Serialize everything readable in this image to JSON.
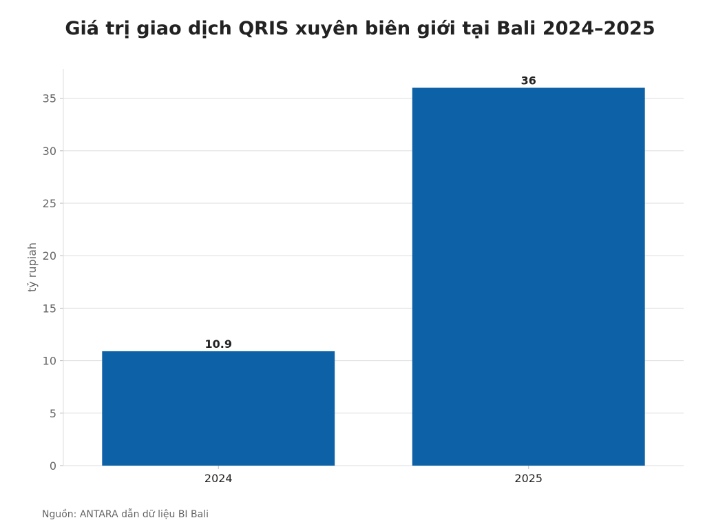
{
  "title": "Giá trị giao dịch QRIS xuyên biên giới tại Bali 2024–2025",
  "source": "Nguồn: ANTARA dẫn dữ liệu BI Bali",
  "chart_data": {
    "type": "bar",
    "title": "Giá trị giao dịch QRIS xuyên biên giới tại Bali 2024–2025",
    "categories": [
      "2024",
      "2025"
    ],
    "values": [
      10.9,
      36
    ],
    "data_labels": [
      "10.9",
      "36"
    ],
    "xlabel": "",
    "ylabel": "tỷ rupiah",
    "ylim": [
      0,
      37.8
    ],
    "yticks": [
      0,
      5,
      10,
      15,
      20,
      25,
      30,
      35
    ],
    "grid": "horizontal",
    "bar_color": "#0d61a7",
    "grid_color": "#dddddd",
    "axis_text_color": "#666666",
    "label_text_color": "#222222"
  }
}
